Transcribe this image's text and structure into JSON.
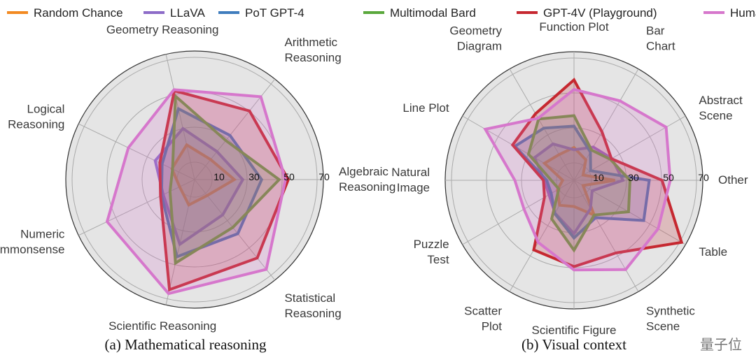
{
  "legend": [
    "Random Chance",
    "LLaVA",
    "PoT GPT-4",
    "Multimodal Bard",
    "GPT-4V (Playground)",
    "Human"
  ],
  "colors": {
    "Random Chance": "#f28a22",
    "LLaVA": "#8d6cc8",
    "PoT GPT-4": "#3f7dbd",
    "Multimodal Bard": "#5aa83c",
    "GPT-4V (Playground)": "#c62830",
    "Human": "#d677cc"
  },
  "watermark": "量子位",
  "chart_data": [
    {
      "type": "radar",
      "title": "(a) Mathematical reasoning",
      "rticks": [
        "10",
        "30",
        "50",
        "70"
      ],
      "rticks_values": [
        10,
        30,
        50,
        70
      ],
      "rlim": [
        0,
        73.6
      ],
      "axes": [
        "Algebraic\nReasoning",
        "Arithmetic\nReasoning",
        "Geometry Reasoning",
        "Logical\nReasoning",
        "Numeric\nCommonsense",
        "Scientific Reasoning",
        "Statistical\nReasoning"
      ],
      "series": [
        {
          "name": "Random Chance",
          "values": [
            22.7,
            14.7,
            20.4,
            14.4,
            9.5,
            14.9,
            11.6
          ]
        },
        {
          "name": "LLaVA",
          "values": [
            27.5,
            20.5,
            30.0,
            25.0,
            19.9,
            38.0,
            25.8
          ]
        },
        {
          "name": "PoT GPT-4",
          "values": [
            38.3,
            32.4,
            41.6,
            20.6,
            21.0,
            45.3,
            39.6
          ]
        },
        {
          "name": "Multimodal Bard",
          "values": [
            48.3,
            28.6,
            49.0,
            14.0,
            15.6,
            49.0,
            35.0
          ]
        },
        {
          "name": "GPT-4V (Playground)",
          "values": [
            53.5,
            50.3,
            52.2,
            22.0,
            21.6,
            64.6,
            57.4
          ]
        },
        {
          "name": "Human",
          "values": [
            51.9,
            60.7,
            52.8,
            42.0,
            55.5,
            66.9,
            65.7
          ]
        }
      ]
    },
    {
      "type": "radar",
      "title": "(b) Visual context",
      "rticks": [
        "10",
        "30",
        "50",
        "70"
      ],
      "rticks_values": [
        10,
        30,
        50,
        70
      ],
      "rlim": [
        0,
        73.6
      ],
      "axes": [
        "Other",
        "Abstract\nScene",
        "Bar\nChart",
        "Function Plot",
        "Geometry\nDiagram",
        "Line Plot",
        "Natural\nImage",
        "Puzzle\nTest",
        "Scatter\nPlot",
        "Scientific Figure",
        "Synthetic\nScene",
        "Table"
      ],
      "series": [
        {
          "name": "Random Chance",
          "values": [
            23.4,
            6.0,
            13.5,
            18.8,
            17.0,
            19.5,
            6.5,
            11.0,
            16.5,
            15.0,
            23.0,
            6.0
          ]
        },
        {
          "name": "LLaVA",
          "values": [
            28.0,
            25.0,
            22.0,
            17.5,
            24.0,
            26.0,
            17.0,
            16.5,
            21.7,
            30.5,
            18.8,
            12.0
          ]
        },
        {
          "name": "PoT GPT-4",
          "values": [
            43.0,
            11.0,
            18.7,
            31.0,
            34.5,
            39.0,
            15.6,
            15.0,
            22.0,
            33.0,
            24.7,
            46.0
          ]
        },
        {
          "name": "Multimodal Bard",
          "values": [
            32.0,
            24.0,
            20.0,
            37.0,
            40.5,
            30.0,
            13.0,
            10.0,
            25.5,
            40.0,
            23.0,
            36.0
          ]
        },
        {
          "name": "GPT-4V (Playground)",
          "values": [
            50.3,
            24.7,
            32.0,
            57.5,
            44.0,
            40.5,
            17.5,
            19.5,
            46.0,
            49.4,
            48.0,
            71.0
          ]
        },
        {
          "name": "Human",
          "values": [
            55.0,
            60.8,
            52.5,
            52.0,
            41.0,
            58.5,
            33.8,
            33.0,
            41.0,
            51.3,
            59.0,
            55.5
          ]
        }
      ]
    }
  ]
}
